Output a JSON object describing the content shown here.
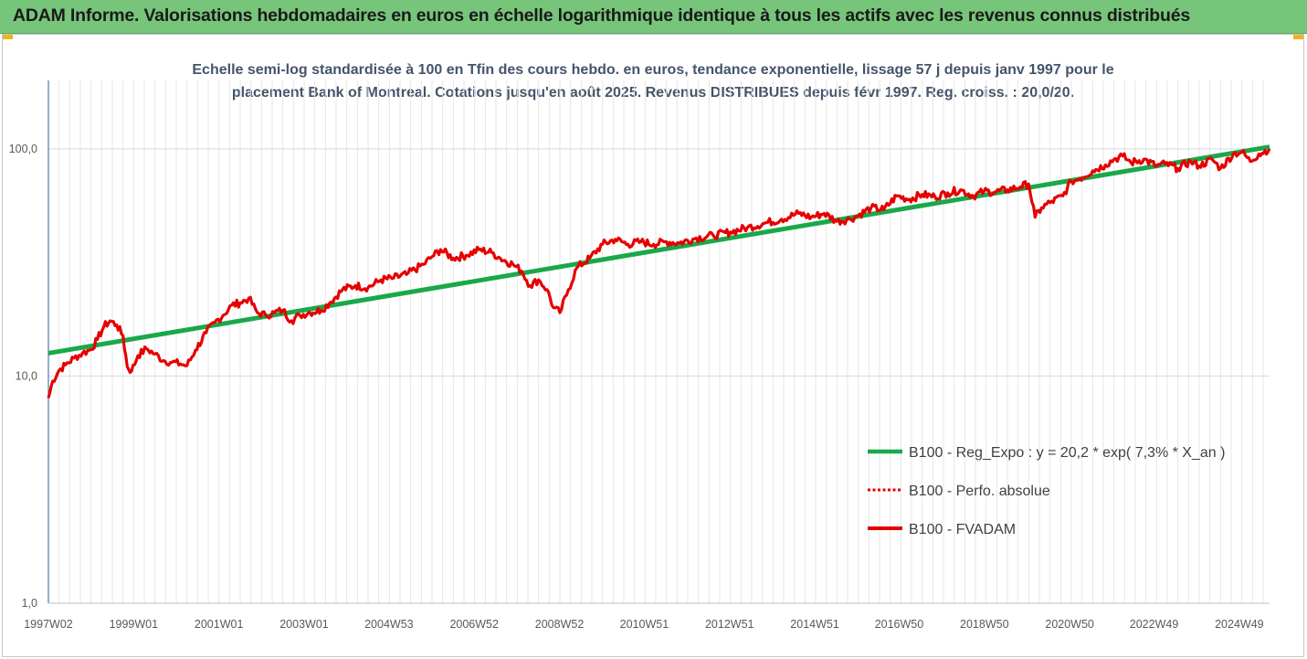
{
  "header": {
    "banner_title": "ADAM Informe. Valorisations hebdomadaires en euros en échelle logarithmique identique à tous les actifs avec les revenus connus distribués"
  },
  "colors": {
    "banner_bg": "#77c57a",
    "regression": "#1aa84a",
    "fvadam": "#e60000",
    "perfo": "#e60000",
    "gridline": "#e6e6e6",
    "axis": "#4a7ab5",
    "subtitle": "#44546a"
  },
  "chart_data": {
    "type": "line",
    "title_lines": [
      "Echelle semi-log standardisée à 100 en Tfin des cours hebdo. en euros, tendance exponentielle, lissage 57 j depuis janv 1997 pour le",
      "placement Bank of Montreal. Cotations jusqu'en août 2025. Revenus DISTRIBUES depuis févr 1997. Reg. croiss. : 20,0/20."
    ],
    "y_scale": "log",
    "ylim": [
      1,
      200
    ],
    "y_ticks": [
      1,
      10,
      100
    ],
    "y_tick_labels": [
      "1,0",
      "10,0",
      "100,0"
    ],
    "x_range": [
      1997.0,
      2025.65
    ],
    "x_tick_years": [
      1997.0,
      1999.0,
      2001.0,
      2003.0,
      2004.99,
      2006.99,
      2008.99,
      2010.98,
      2012.98,
      2014.98,
      2016.96,
      2018.96,
      2020.96,
      2022.94,
      2024.94
    ],
    "x_tick_labels": [
      "1997W02",
      "1999W01",
      "2001W01",
      "2003W01",
      "2004W53",
      "2006W52",
      "2008W52",
      "2010W51",
      "2012W51",
      "2014W51",
      "2016W50",
      "2018W50",
      "2020W50",
      "2022W49",
      "2024W49"
    ],
    "grid": true,
    "legend": {
      "position": "right",
      "entries": [
        {
          "label": "B100 - Reg_Expo : y = 20,2 * exp( 7,3% *  X_an )",
          "style": "solid-green"
        },
        {
          "label": "B100 - Perfo. absolue",
          "style": "dotted-red"
        },
        {
          "label": "B100 - FVADAM",
          "style": "solid-red"
        }
      ]
    },
    "series": [
      {
        "name": "B100 - Reg_Expo : y = 20,2 * exp( 7,3% *  X_an )",
        "x": [
          1997.0,
          2025.65
        ],
        "y": [
          12.6,
          102.0
        ]
      },
      {
        "name": "B100 - FVADAM",
        "x": [
          1997.0,
          1997.1,
          1997.25,
          1997.4,
          1997.6,
          1997.8,
          1998.0,
          1998.15,
          1998.3,
          1998.45,
          1998.6,
          1998.75,
          1998.85,
          1998.95,
          1999.1,
          1999.3,
          1999.5,
          1999.7,
          1999.9,
          2000.1,
          2000.25,
          2000.45,
          2000.7,
          2000.9,
          2001.1,
          2001.3,
          2001.5,
          2001.7,
          2001.9,
          2002.1,
          2002.3,
          2002.5,
          2002.7,
          2002.9,
          2003.1,
          2003.4,
          2003.6,
          2003.9,
          2004.2,
          2004.5,
          2004.8,
          2005.1,
          2005.4,
          2005.8,
          2006.0,
          2006.2,
          2006.5,
          2006.8,
          2007.1,
          2007.4,
          2007.6,
          2007.9,
          2008.1,
          2008.3,
          2008.5,
          2008.7,
          2008.85,
          2009.0,
          2009.2,
          2009.4,
          2009.7,
          2010.0,
          2010.3,
          2010.6,
          2010.9,
          2011.2,
          2011.5,
          2011.8,
          2012.2,
          2012.6,
          2013.0,
          2013.4,
          2013.8,
          2014.2,
          2014.6,
          2014.9,
          2015.2,
          2015.5,
          2015.8,
          2016.0,
          2016.3,
          2016.6,
          2016.9,
          2017.2,
          2017.5,
          2017.8,
          2018.1,
          2018.4,
          2018.7,
          2018.95,
          2019.2,
          2019.5,
          2019.8,
          2020.0,
          2020.15,
          2020.3,
          2020.5,
          2020.8,
          2021.0,
          2021.2,
          2021.5,
          2021.8,
          2022.0,
          2022.2,
          2022.4,
          2022.7,
          2023.0,
          2023.2,
          2023.5,
          2023.8,
          2024.0,
          2024.3,
          2024.5,
          2024.8,
          2025.0,
          2025.2,
          2025.4,
          2025.65
        ],
        "y": [
          8.0,
          9.5,
          10.6,
          11.2,
          12.0,
          12.6,
          13.1,
          14.5,
          16.5,
          17.5,
          16.8,
          15.0,
          11.0,
          10.5,
          12.3,
          13.2,
          12.5,
          11.7,
          11.5,
          11.3,
          11.1,
          13.0,
          15.5,
          17.2,
          18.5,
          20.5,
          21.0,
          22.0,
          19.0,
          18.5,
          19.0,
          19.5,
          17.5,
          18.5,
          19.0,
          19.5,
          21.0,
          24.0,
          25.0,
          24.5,
          26.5,
          27.0,
          28.0,
          31.0,
          33.5,
          36.0,
          33.0,
          34.0,
          36.0,
          35.0,
          33.0,
          31.0,
          29.0,
          25.0,
          26.5,
          24.0,
          20.0,
          19.0,
          24.0,
          30.0,
          33.0,
          38.0,
          40.0,
          38.0,
          39.0,
          38.0,
          39.0,
          38.5,
          40.5,
          41.5,
          43.0,
          45.0,
          47.0,
          49.0,
          52.0,
          50.0,
          52.0,
          48.0,
          49.0,
          51.0,
          55.0,
          54.0,
          62.0,
          60.0,
          63.0,
          61.5,
          64.0,
          66.0,
          62.0,
          65.0,
          64.5,
          66.0,
          68.0,
          70.0,
          50.0,
          55.0,
          58.0,
          62.0,
          72.0,
          74.0,
          80.0,
          85.0,
          90.0,
          93.0,
          87.0,
          90.0,
          84.0,
          86.0,
          82.0,
          88.0,
          84.0,
          90.0,
          82.0,
          95.0,
          97.0,
          88.0,
          95.0,
          100.0
        ]
      }
    ]
  }
}
